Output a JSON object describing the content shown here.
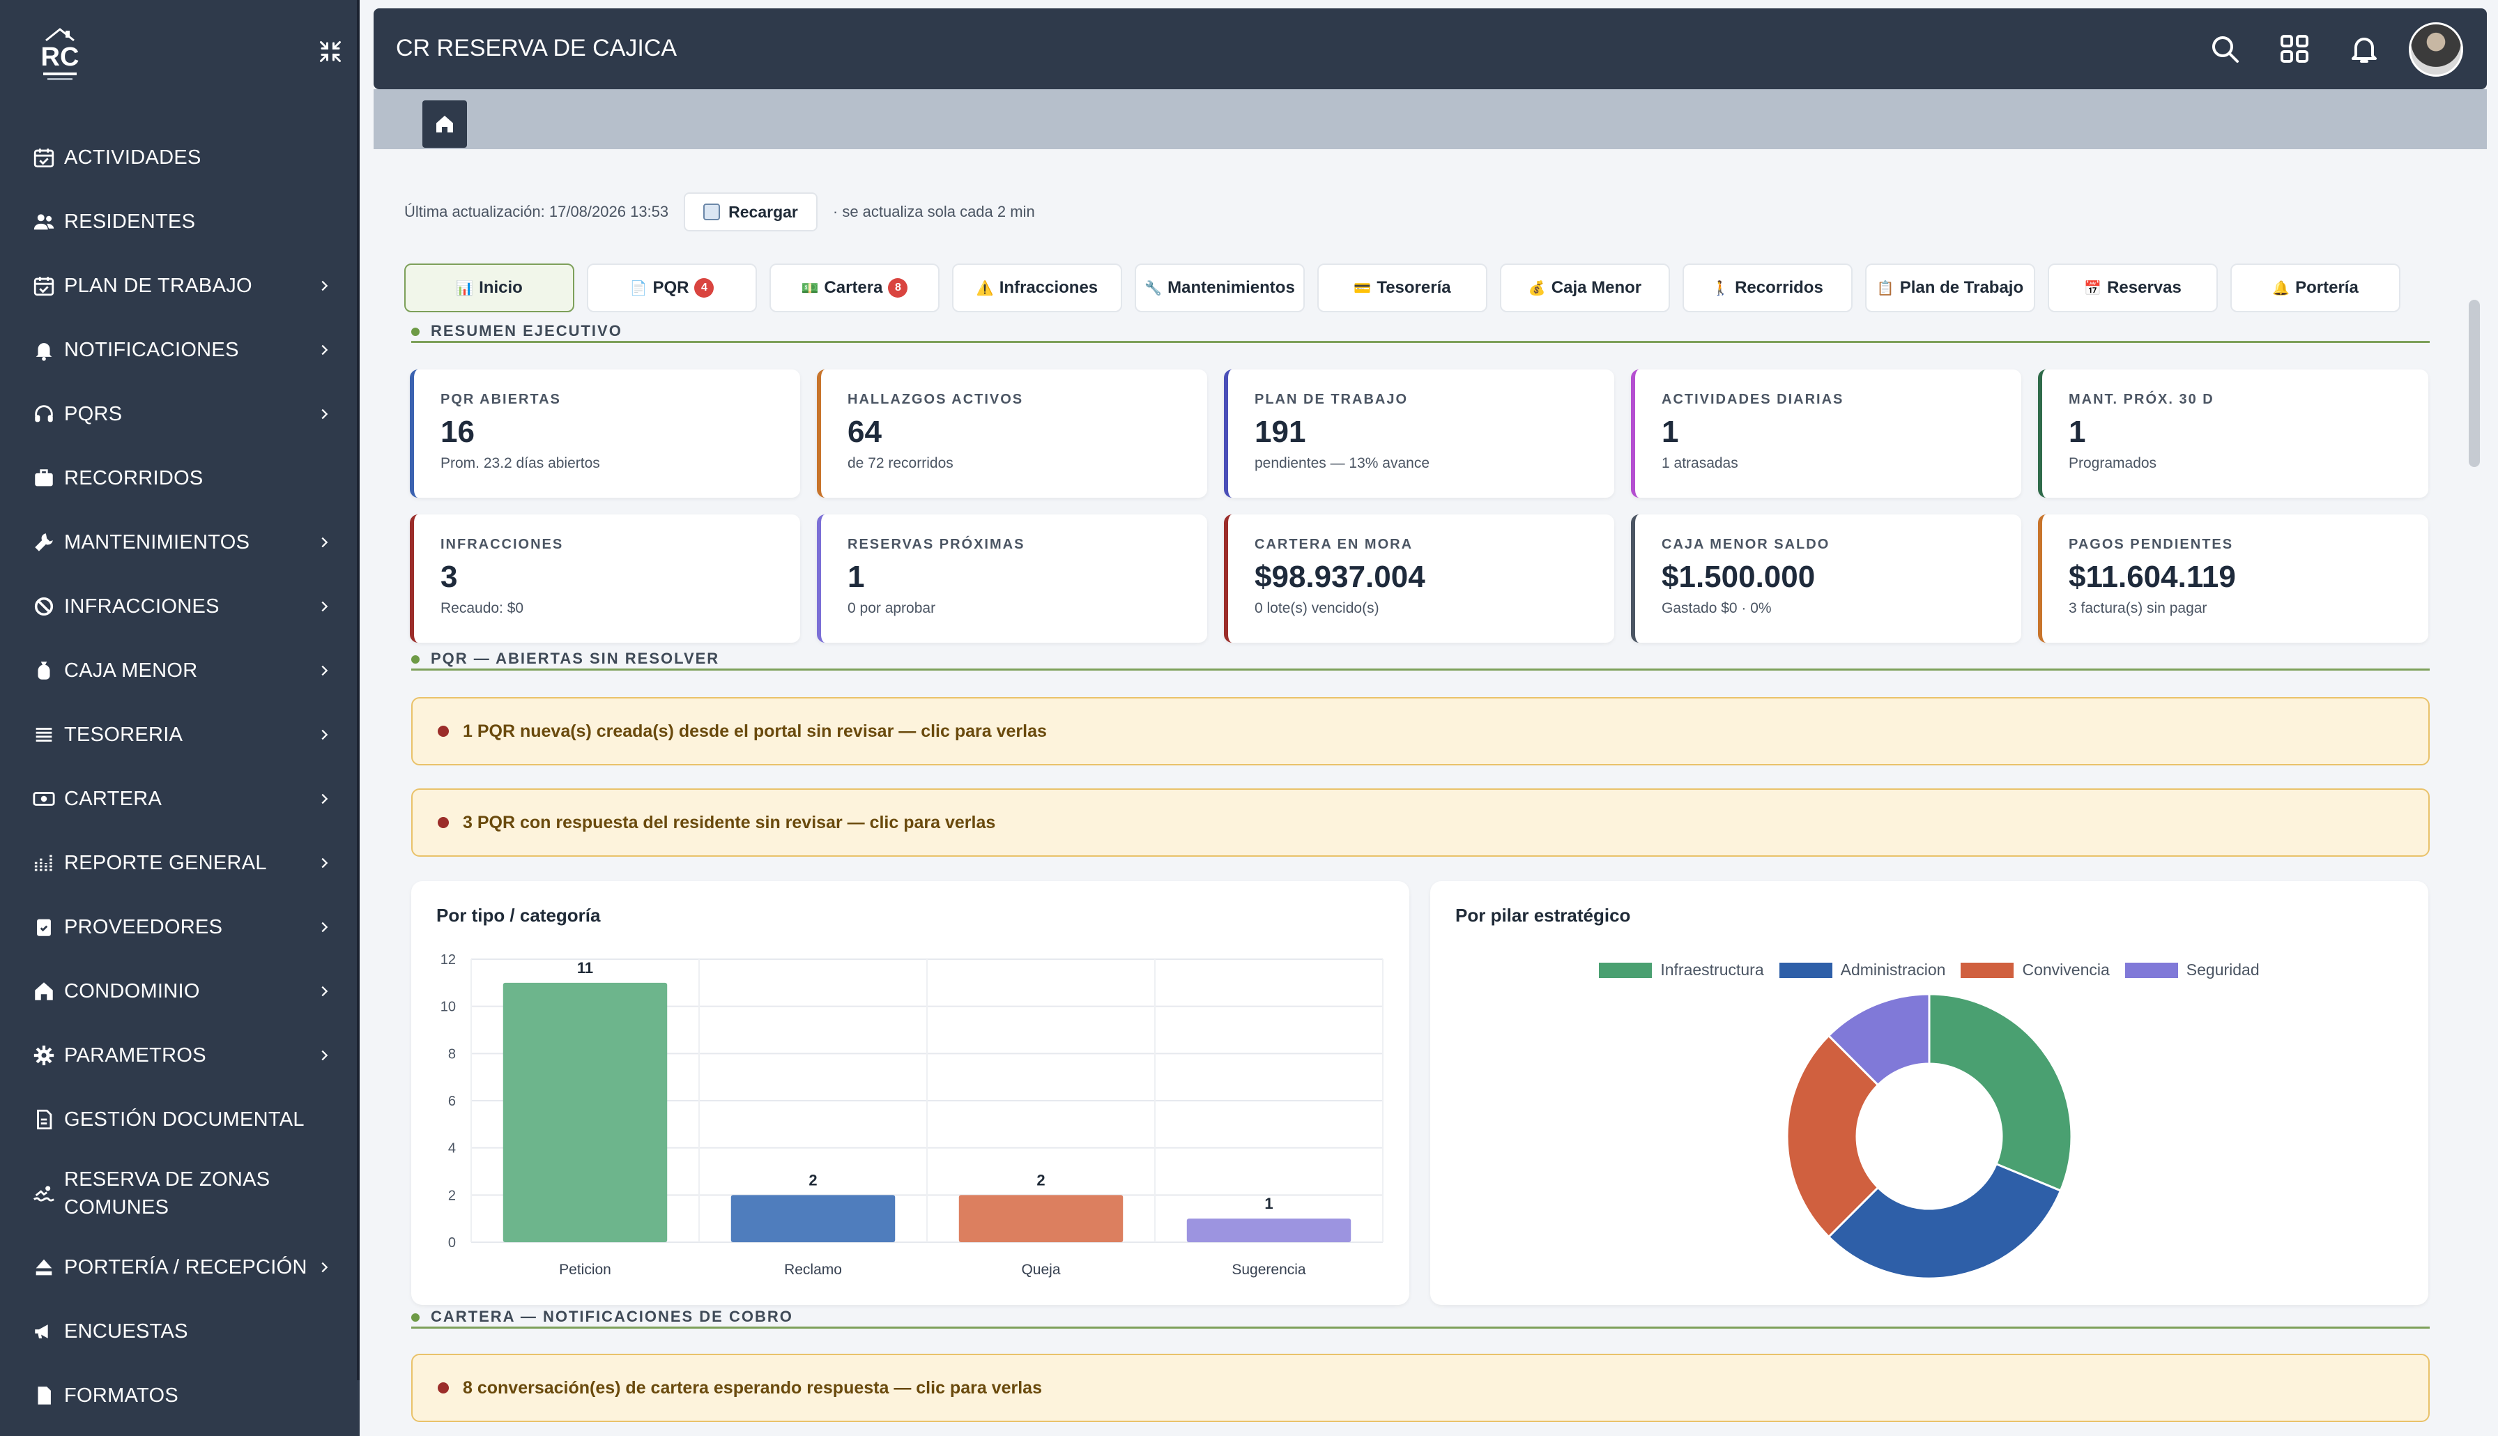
{
  "app": {
    "title": "CR RESERVA DE CAJICA",
    "logo_text": "RC"
  },
  "colors": {
    "sidebar": "#2f3a4b",
    "accent": "#7da05a",
    "alert_bg": "#fdf3dc",
    "danger": "#d9443f"
  },
  "sidebar": {
    "items": [
      {
        "label": "ACTIVIDADES",
        "icon": "calendar-check-icon",
        "chevron": false
      },
      {
        "label": "RESIDENTES",
        "icon": "users-icon",
        "chevron": false
      },
      {
        "label": "PLAN DE TRABAJO",
        "icon": "calendar-check-icon",
        "chevron": true
      },
      {
        "label": "NOTIFICACIONES",
        "icon": "bell-icon",
        "chevron": true
      },
      {
        "label": "PQRS",
        "icon": "headset-icon",
        "chevron": true
      },
      {
        "label": "RECORRIDOS",
        "icon": "briefcase-icon",
        "chevron": false
      },
      {
        "label": "MANTENIMIENTOS",
        "icon": "wrench-icon",
        "chevron": true
      },
      {
        "label": "INFRACCIONES",
        "icon": "ban-icon",
        "chevron": true
      },
      {
        "label": "CAJA MENOR",
        "icon": "money-bag-icon",
        "chevron": true
      },
      {
        "label": "TESORERIA",
        "icon": "list-icon",
        "chevron": true
      },
      {
        "label": "CARTERA",
        "icon": "money-bill-icon",
        "chevron": true
      },
      {
        "label": "REPORTE GENERAL",
        "icon": "chart-icon",
        "chevron": true
      },
      {
        "label": "PROVEEDORES",
        "icon": "clipboard-check-icon",
        "chevron": true
      },
      {
        "label": "CONDOMINIO",
        "icon": "home-icon",
        "chevron": true
      },
      {
        "label": "PARAMETROS",
        "icon": "gear-icon",
        "chevron": true
      },
      {
        "label": "GESTIÓN DOCUMENTAL",
        "icon": "document-icon",
        "chevron": false
      },
      {
        "label": "RESERVA DE ZONAS COMUNES",
        "icon": "swimmer-icon",
        "chevron": false
      },
      {
        "label": "PORTERÍA / RECEPCIÓN",
        "icon": "eject-icon",
        "chevron": true
      },
      {
        "label": "ENCUESTAS",
        "icon": "megaphone-icon",
        "chevron": false
      },
      {
        "label": "FORMATOS",
        "icon": "file-icon",
        "chevron": false
      }
    ]
  },
  "update": {
    "last_update": "Última actualización: 17/08/2026 13:53",
    "reload_label": "Recargar",
    "note": "· se actualiza sola cada 2 min"
  },
  "tabs": [
    {
      "label": "Inicio",
      "icon": "📊",
      "badge": ""
    },
    {
      "label": "PQR",
      "icon": "📄",
      "badge": "4"
    },
    {
      "label": "Cartera",
      "icon": "💵",
      "badge": "8"
    },
    {
      "label": "Infracciones",
      "icon": "⚠️",
      "badge": ""
    },
    {
      "label": "Mantenimientos",
      "icon": "🔧",
      "badge": ""
    },
    {
      "label": "Tesorería",
      "icon": "💳",
      "badge": ""
    },
    {
      "label": "Caja Menor",
      "icon": "💰",
      "badge": ""
    },
    {
      "label": "Recorridos",
      "icon": "🚶",
      "badge": ""
    },
    {
      "label": "Plan de Trabajo",
      "icon": "📋",
      "badge": ""
    },
    {
      "label": "Reservas",
      "icon": "📅",
      "badge": ""
    },
    {
      "label": "Portería",
      "icon": "🔔",
      "badge": ""
    }
  ],
  "sections": {
    "resumen": "RESUMEN EJECUTIVO",
    "pqr": "PQR — ABIERTAS SIN RESOLVER",
    "cartera": "CARTERA — NOTIFICACIONES DE COBRO"
  },
  "kpis": [
    {
      "label": "PQR ABIERTAS",
      "value": "16",
      "sub": "Prom. 23.2 días abiertos",
      "color": "#3b62b0"
    },
    {
      "label": "HALLAZGOS ACTIVOS",
      "value": "64",
      "sub": "de 72 recorridos",
      "color": "#c8742b"
    },
    {
      "label": "PLAN DE TRABAJO",
      "value": "191",
      "sub": "pendientes — 13% avance",
      "color": "#4a4fb8"
    },
    {
      "label": "ACTIVIDADES DIARIAS",
      "value": "1",
      "sub": "1 atrasadas",
      "color": "#b44fd0"
    },
    {
      "label": "MANT. PRÓX. 30 D",
      "value": "1",
      "sub": "Programados",
      "color": "#2f6b4a"
    },
    {
      "label": "INFRACCIONES",
      "value": "3",
      "sub": "Recaudo: $0",
      "color": "#9b2d2a"
    },
    {
      "label": "RESERVAS PRÓXIMAS",
      "value": "1",
      "sub": "0 por aprobar",
      "color": "#7b6fd6"
    },
    {
      "label": "CARTERA EN MORA",
      "value": "$98.937.004",
      "sub": "0 lote(s) vencido(s)",
      "color": "#9b2d2a"
    },
    {
      "label": "CAJA MENOR SALDO",
      "value": "$1.500.000",
      "sub": "Gastado $0 · 0%",
      "color": "#4b5563"
    },
    {
      "label": "PAGOS PENDIENTES",
      "value": "$11.604.119",
      "sub": "3 factura(s) sin pagar",
      "color": "#c8742b"
    }
  ],
  "alerts": {
    "pqr_new": "1 PQR nueva(s) creada(s) desde el portal sin revisar — clic para verlas",
    "pqr_resp": "3 PQR con respuesta del residente sin revisar — clic para verlas",
    "cartera": "8 conversación(es) de cartera esperando respuesta — clic para verlas"
  },
  "chart_data": [
    {
      "type": "bar",
      "title": "Por tipo / categoría",
      "categories": [
        "Peticion",
        "Reclamo",
        "Queja",
        "Sugerencia"
      ],
      "values": [
        11,
        2,
        2,
        1
      ],
      "colors": [
        "#6db58c",
        "#4f7dbd",
        "#dc7f5f",
        "#9c94e0"
      ],
      "ylim": [
        0,
        12
      ],
      "yticks": [
        0,
        2,
        4,
        6,
        8,
        10,
        12
      ],
      "grid": true
    },
    {
      "type": "pie",
      "title": "Por pilar estratégico",
      "labels": [
        "Infraestructura",
        "Administracion",
        "Convivencia",
        "Seguridad"
      ],
      "values": [
        5,
        5,
        4,
        2
      ],
      "colors": [
        "#4aa071",
        "#2e5fa8",
        "#d0603f",
        "#8079d8"
      ],
      "legend": "top"
    }
  ]
}
